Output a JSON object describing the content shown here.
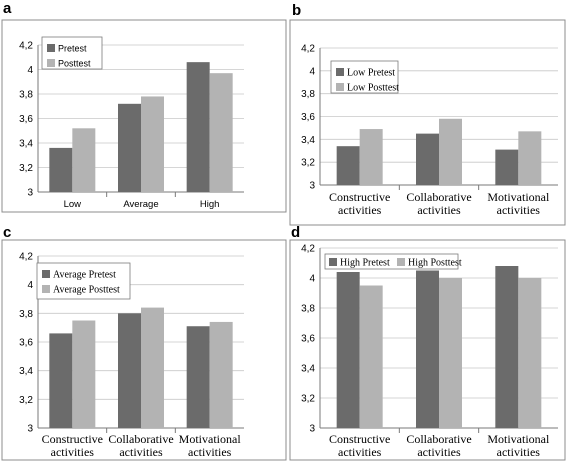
{
  "figure": {
    "colors": {
      "dark": "#6b6b6b",
      "light": "#b3b3b3",
      "grid": "#c8c8c8"
    }
  },
  "chart_data": [
    {
      "panel": "a",
      "type": "bar",
      "categories": [
        [
          "Low"
        ],
        [
          "Average"
        ],
        [
          "High"
        ]
      ],
      "series": [
        {
          "name": "Pretest",
          "values": [
            3.36,
            3.72,
            4.06
          ]
        },
        {
          "name": "Posttest",
          "values": [
            3.52,
            3.78,
            3.97
          ]
        }
      ],
      "ylim": [
        3,
        4.2
      ],
      "yticks": [
        "3",
        "3,2",
        "3,4",
        "3,6",
        "3,8",
        "4",
        "4,2"
      ],
      "grid": true,
      "legend": "top-left"
    },
    {
      "panel": "b",
      "type": "bar",
      "categories": [
        [
          "Constructive",
          "activities"
        ],
        [
          "Collaborative",
          "activities"
        ],
        [
          "Motivational",
          "activities"
        ]
      ],
      "series": [
        {
          "name": "Low Pretest",
          "values": [
            3.34,
            3.45,
            3.31
          ]
        },
        {
          "name": "Low Posttest",
          "values": [
            3.49,
            3.58,
            3.47
          ]
        }
      ],
      "ylim": [
        3,
        4.2
      ],
      "yticks": [
        "3",
        "3,2",
        "3,4",
        "3,6",
        "3,8",
        "4",
        "4,2"
      ],
      "grid": true,
      "legend": "top-left"
    },
    {
      "panel": "c",
      "type": "bar",
      "categories": [
        [
          "Constructive",
          "activities"
        ],
        [
          "Collaborative",
          "activities"
        ],
        [
          "Motivational",
          "activities"
        ]
      ],
      "series": [
        {
          "name": "Average Pretest",
          "values": [
            3.66,
            3.8,
            3.71
          ]
        },
        {
          "name": "Average Posttest",
          "values": [
            3.75,
            3.84,
            3.74
          ]
        }
      ],
      "ylim": [
        3,
        4.2
      ],
      "yticks": [
        "3",
        "3,2",
        "3,4",
        "3,6",
        "3,8",
        "4",
        "4,2"
      ],
      "grid": true,
      "legend": "top-left"
    },
    {
      "panel": "d",
      "type": "bar",
      "categories": [
        [
          "Constructive",
          "activities"
        ],
        [
          "Collaborative",
          "activities"
        ],
        [
          "Motivational",
          "activities"
        ]
      ],
      "series": [
        {
          "name": "High Pretest",
          "values": [
            4.04,
            4.05,
            4.08
          ]
        },
        {
          "name": "High Posttest",
          "values": [
            3.95,
            4.0,
            4.0
          ]
        }
      ],
      "ylim": [
        3,
        4.2
      ],
      "yticks": [
        "3",
        "3,2",
        "3,4",
        "3,6",
        "3,8",
        "4",
        "4,2"
      ],
      "grid": true,
      "legend": "top"
    }
  ]
}
